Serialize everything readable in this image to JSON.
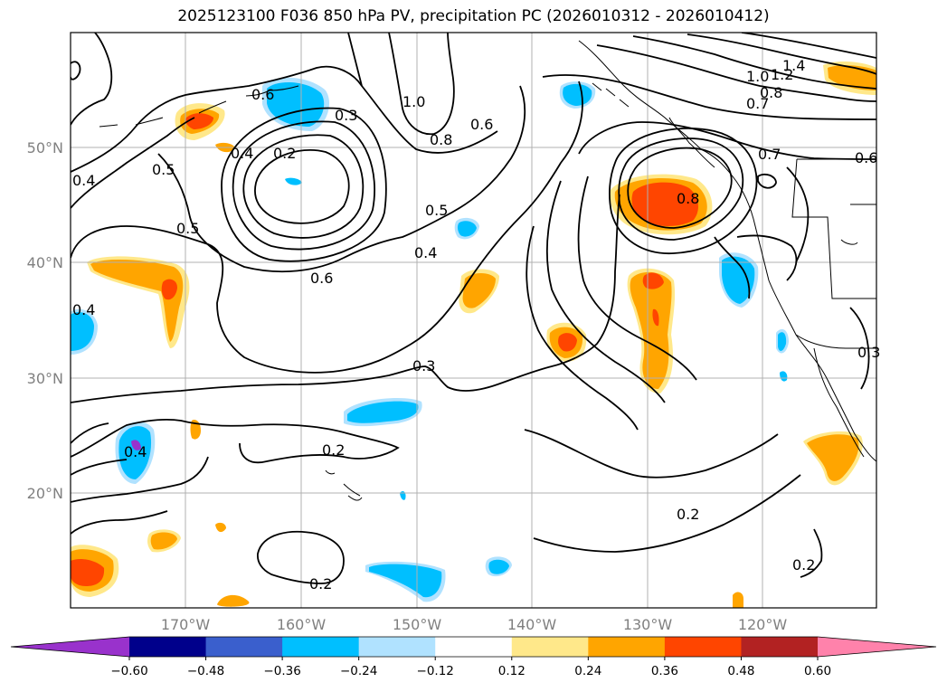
{
  "title": "2025123100 F036 850 hPa PV, precipitation PC (2026010312 - 2026010412)",
  "map": {
    "lat_labels": [
      "50°N",
      "40°N",
      "30°N",
      "20°N"
    ],
    "lon_labels": [
      "170°W",
      "160°W",
      "150°W",
      "140°W",
      "130°W",
      "120°W"
    ]
  },
  "contour_labels": [
    {
      "text": "0.6"
    },
    {
      "text": "0.3"
    },
    {
      "text": "1.0"
    },
    {
      "text": "0.4"
    },
    {
      "text": "0.2"
    },
    {
      "text": "0.5"
    },
    {
      "text": "0.8"
    },
    {
      "text": "0.6"
    },
    {
      "text": "0.4"
    },
    {
      "text": "0.5"
    },
    {
      "text": "0.5"
    },
    {
      "text": "0.4"
    },
    {
      "text": "0.6"
    },
    {
      "text": "0.4"
    },
    {
      "text": "0.3"
    },
    {
      "text": "0.2"
    },
    {
      "text": "0.4"
    },
    {
      "text": "0.2"
    },
    {
      "text": "0.2"
    },
    {
      "text": "0.2"
    },
    {
      "text": "0.8"
    },
    {
      "text": "1.0"
    },
    {
      "text": "1.2"
    },
    {
      "text": "1.4"
    },
    {
      "text": "0.8"
    },
    {
      "text": "0.7"
    },
    {
      "text": "0.7"
    },
    {
      "text": "0.6"
    },
    {
      "text": "0.3"
    }
  ],
  "colorbar": {
    "ticks": [
      "−0.60",
      "−0.48",
      "−0.36",
      "−0.24",
      "−0.12",
      "0.12",
      "0.24",
      "0.36",
      "0.48",
      "0.60"
    ],
    "colors": [
      "#9932cc",
      "#00008b",
      "#3a5fcd",
      "#00bfff",
      "#b0e2ff",
      "#ffffff",
      "#ffe88a",
      "#ffa500",
      "#ff4500",
      "#b22222",
      "#ff82ab"
    ]
  }
}
